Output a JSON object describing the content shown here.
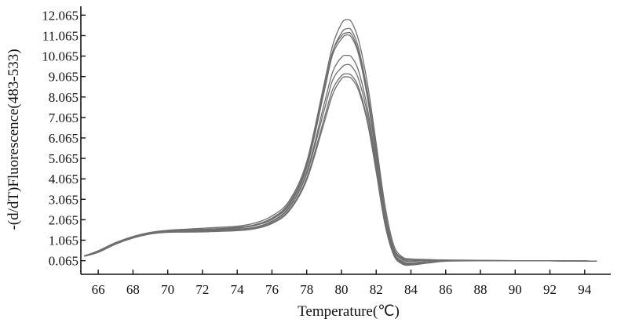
{
  "chart_data": {
    "type": "line",
    "xlabel": "Temperature(℃)",
    "ylabel": "-(d/dT)Fluorescence(483-533)",
    "xlim": [
      65,
      95.5
    ],
    "ylim": [
      -0.6,
      12.5
    ],
    "x_ticks": [
      "66",
      "68",
      "70",
      "72",
      "74",
      "76",
      "78",
      "80",
      "82",
      "84",
      "86",
      "88",
      "90",
      "92",
      "94"
    ],
    "y_ticks": [
      "0.065",
      "1.065",
      "2.065",
      "3.065",
      "4.065",
      "5.065",
      "6.065",
      "7.065",
      "8.065",
      "9.065",
      "10.065",
      "11.065",
      "12.065"
    ],
    "grid": false,
    "line_color": "#6e6e6e",
    "series": [
      {
        "x": [
          65.2,
          66,
          67,
          68,
          69,
          70,
          71,
          72,
          73,
          74,
          75,
          76,
          77,
          78,
          79,
          79.5,
          80,
          80.3,
          80.6,
          81,
          81.5,
          82,
          82.5,
          83,
          83.5,
          84,
          85,
          86,
          88,
          90,
          92,
          94,
          94.7
        ],
        "y": [
          0.3,
          0.55,
          0.95,
          1.25,
          1.45,
          1.55,
          1.6,
          1.65,
          1.7,
          1.75,
          1.9,
          2.25,
          3.0,
          4.9,
          8.7,
          10.6,
          11.65,
          11.85,
          11.7,
          10.8,
          8.7,
          5.8,
          2.8,
          0.85,
          0.25,
          0.15,
          0.12,
          0.09,
          0.07,
          0.065,
          0.06,
          0.05,
          0.04
        ]
      },
      {
        "x": [
          65.2,
          66,
          67,
          68,
          69,
          70,
          71,
          72,
          73,
          74,
          75,
          76,
          77,
          78,
          79,
          79.5,
          80,
          80.3,
          80.6,
          81,
          81.5,
          82,
          82.5,
          83,
          83.5,
          84,
          85,
          86,
          88,
          90,
          92,
          94,
          94.7
        ],
        "y": [
          0.3,
          0.5,
          0.9,
          1.2,
          1.4,
          1.5,
          1.55,
          1.58,
          1.62,
          1.68,
          1.8,
          2.1,
          2.85,
          4.7,
          8.4,
          10.3,
          11.2,
          11.4,
          11.3,
          10.4,
          8.3,
          5.5,
          2.5,
          0.7,
          0.2,
          0.1,
          0.08,
          0.07,
          0.065,
          0.06,
          0.055,
          0.05,
          0.04
        ]
      },
      {
        "x": [
          65.2,
          66,
          67,
          68,
          69,
          70,
          71,
          72,
          73,
          74,
          75,
          76,
          77,
          78,
          79,
          79.5,
          80,
          80.3,
          80.6,
          81,
          81.5,
          82,
          82.5,
          83,
          83.5,
          84,
          85,
          86,
          88,
          90,
          92,
          94,
          94.7
        ],
        "y": [
          0.28,
          0.5,
          0.92,
          1.22,
          1.42,
          1.52,
          1.56,
          1.6,
          1.64,
          1.7,
          1.82,
          2.15,
          2.9,
          4.75,
          8.5,
          10.3,
          11.05,
          11.2,
          11.1,
          10.2,
          8.1,
          5.3,
          2.4,
          0.65,
          0.15,
          0.05,
          0.1,
          0.09,
          0.07,
          0.06,
          0.055,
          0.05,
          0.04
        ]
      },
      {
        "x": [
          65.2,
          66,
          67,
          68,
          69,
          70,
          71,
          72,
          73,
          74,
          75,
          76,
          77,
          78,
          79,
          79.5,
          80,
          80.3,
          80.6,
          81,
          81.5,
          82,
          82.5,
          83,
          83.5,
          84,
          85,
          86,
          88,
          90,
          92,
          94,
          94.7
        ],
        "y": [
          0.3,
          0.52,
          0.93,
          1.23,
          1.43,
          1.52,
          1.55,
          1.57,
          1.6,
          1.65,
          1.78,
          2.08,
          2.8,
          4.6,
          8.3,
          10.15,
          10.9,
          11.1,
          10.95,
          10.1,
          8.0,
          5.2,
          2.3,
          0.6,
          0.12,
          0.02,
          0.1,
          0.1,
          0.08,
          0.065,
          0.06,
          0.05,
          0.04
        ]
      },
      {
        "x": [
          65.2,
          66,
          67,
          68,
          69,
          70,
          71,
          72,
          73,
          74,
          75,
          76,
          77,
          78,
          79,
          79.5,
          80,
          80.3,
          80.6,
          81,
          81.5,
          82,
          82.5,
          83,
          83.5,
          84,
          85,
          86,
          88,
          90,
          92,
          94,
          94.7
        ],
        "y": [
          0.28,
          0.48,
          0.88,
          1.18,
          1.38,
          1.48,
          1.5,
          1.52,
          1.55,
          1.6,
          1.7,
          2.0,
          2.7,
          4.4,
          7.7,
          9.3,
          10.0,
          10.1,
          10.0,
          9.3,
          7.5,
          4.9,
          2.1,
          0.5,
          0.05,
          -0.05,
          0.05,
          0.08,
          0.07,
          0.06,
          0.055,
          0.05,
          0.04
        ]
      },
      {
        "x": [
          65.2,
          66,
          67,
          68,
          69,
          70,
          71,
          72,
          73,
          74,
          75,
          76,
          77,
          78,
          79,
          79.5,
          80,
          80.3,
          80.6,
          81,
          81.5,
          82,
          82.5,
          83,
          83.5,
          84,
          85,
          86,
          88,
          90,
          92,
          94,
          94.7
        ],
        "y": [
          0.29,
          0.5,
          0.9,
          1.2,
          1.4,
          1.5,
          1.52,
          1.53,
          1.56,
          1.6,
          1.7,
          1.98,
          2.65,
          4.3,
          7.4,
          8.9,
          9.5,
          9.65,
          9.55,
          8.9,
          7.2,
          4.7,
          2.0,
          0.45,
          0.0,
          -0.08,
          0.0,
          0.06,
          0.07,
          0.06,
          0.055,
          0.05,
          0.04
        ]
      },
      {
        "x": [
          65.2,
          66,
          67,
          68,
          69,
          70,
          71,
          72,
          73,
          74,
          75,
          76,
          77,
          78,
          79,
          79.5,
          80,
          80.3,
          80.6,
          81,
          81.5,
          82,
          82.5,
          83,
          83.5,
          84,
          85,
          86,
          88,
          90,
          92,
          94,
          94.7
        ],
        "y": [
          0.3,
          0.5,
          0.9,
          1.2,
          1.4,
          1.48,
          1.5,
          1.5,
          1.52,
          1.55,
          1.65,
          1.92,
          2.55,
          4.1,
          7.0,
          8.45,
          9.1,
          9.2,
          9.1,
          8.5,
          6.9,
          4.5,
          1.9,
          0.4,
          -0.05,
          -0.12,
          -0.02,
          0.05,
          0.06,
          0.06,
          0.055,
          0.05,
          0.04
        ]
      },
      {
        "x": [
          65.2,
          66,
          67,
          68,
          69,
          70,
          71,
          72,
          73,
          74,
          75,
          76,
          77,
          78,
          79,
          79.5,
          80,
          80.3,
          80.6,
          81,
          81.5,
          82,
          82.5,
          83,
          83.5,
          84,
          85,
          86,
          88,
          90,
          92,
          94,
          94.7
        ],
        "y": [
          0.28,
          0.47,
          0.87,
          1.17,
          1.37,
          1.45,
          1.46,
          1.47,
          1.5,
          1.53,
          1.62,
          1.88,
          2.5,
          4.0,
          6.8,
          8.2,
          8.95,
          9.05,
          8.95,
          8.35,
          6.8,
          4.4,
          1.85,
          0.35,
          -0.1,
          -0.15,
          -0.05,
          0.04,
          0.06,
          0.06,
          0.055,
          0.05,
          0.04
        ]
      }
    ]
  }
}
